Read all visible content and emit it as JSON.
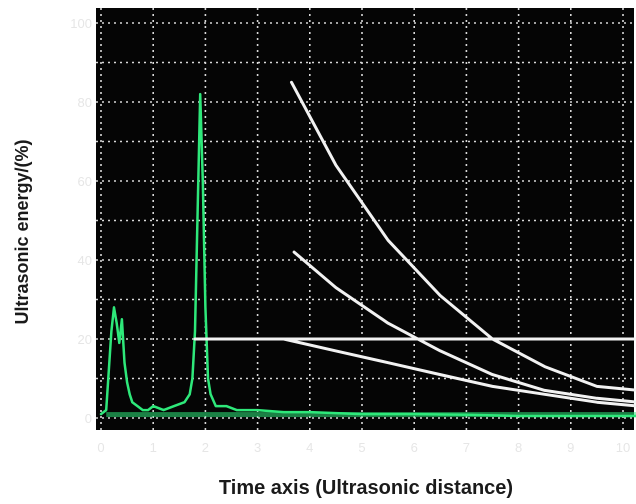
{
  "chart_data": {
    "type": "line",
    "xlabel": "Time axis (Ultrasonic distance)",
    "ylabel": "Ultrasonic energy/(%)",
    "xlim": [
      0,
      10.3
    ],
    "ylim": [
      -2,
      103
    ],
    "x_ticks": [
      "0",
      "1",
      "2",
      "3",
      "4",
      "5",
      "6",
      "7",
      "8",
      "9",
      "10"
    ],
    "y_ticks": [
      "0",
      "20",
      "40",
      "60",
      "80",
      "100"
    ],
    "grid": true,
    "legend": "none",
    "colors": {
      "background": "#050505",
      "grid": "#d8d8d8",
      "tick_text": "#e6e6e6",
      "signal": "#2ee87a",
      "reference": "#f2f2f2"
    },
    "series": [
      {
        "style": "signal",
        "color": "#2ee87a",
        "x": [
          0,
          0.1,
          0.15,
          0.2,
          0.25,
          0.3,
          0.35,
          0.4,
          0.45,
          0.5,
          0.55,
          0.6,
          0.7,
          0.8,
          0.9,
          1.0,
          1.2,
          1.4,
          1.6,
          1.7,
          1.75,
          1.8,
          1.85,
          1.9,
          1.95,
          2.0,
          2.05,
          2.1,
          2.2,
          2.4,
          2.6,
          3.0,
          3.5,
          4.0,
          5.0,
          6.0,
          7.0,
          8.0,
          9.0,
          10.0,
          10.3
        ],
        "y": [
          1,
          2,
          12,
          22,
          28,
          24,
          19,
          25,
          14,
          9,
          6,
          4,
          3,
          2,
          2,
          3,
          2,
          3,
          4,
          6,
          10,
          22,
          52,
          82,
          60,
          28,
          10,
          6,
          3,
          3,
          2,
          2,
          1.5,
          1.5,
          1,
          1,
          0.8,
          0.5,
          0.5,
          0.5,
          0.5
        ]
      },
      {
        "style": "reference",
        "color": "#f2f2f2",
        "x": [
          1.8,
          10.3
        ],
        "y": [
          20,
          20
        ]
      },
      {
        "style": "reference",
        "color": "#f2f2f2",
        "x": [
          3.65,
          4.5,
          5.5,
          6.5,
          7.5,
          8.5,
          9.5,
          10.3
        ],
        "y": [
          85,
          64,
          45,
          31,
          20,
          13,
          8,
          7
        ]
      },
      {
        "style": "reference",
        "color": "#f2f2f2",
        "x": [
          3.7,
          4.5,
          5.5,
          6.5,
          7.5,
          8.5,
          9.5,
          10.3
        ],
        "y": [
          42,
          33,
          24,
          17,
          11,
          7,
          5,
          4
        ]
      },
      {
        "style": "reference",
        "color": "#f2f2f2",
        "x": [
          3.5,
          4.5,
          5.5,
          6.5,
          7.5,
          8.5,
          9.5,
          10.3
        ],
        "y": [
          20,
          17,
          14,
          11,
          8,
          6,
          4,
          3
        ]
      }
    ]
  }
}
